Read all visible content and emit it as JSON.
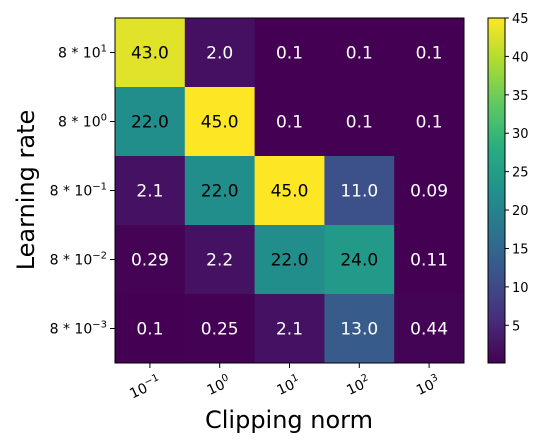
{
  "chart_data": {
    "type": "heatmap",
    "xlabel": "Clipping norm",
    "ylabel": "Learning rate",
    "x_ticks": [
      {
        "base": "10",
        "exp": "−1"
      },
      {
        "base": "10",
        "exp": "0"
      },
      {
        "base": "10",
        "exp": "1"
      },
      {
        "base": "10",
        "exp": "2"
      },
      {
        "base": "10",
        "exp": "3"
      }
    ],
    "y_ticks": [
      {
        "base": "8 * 10",
        "exp": "1"
      },
      {
        "base": "8 * 10",
        "exp": "0"
      },
      {
        "base": "8 * 10",
        "exp": "−1"
      },
      {
        "base": "8 * 10",
        "exp": "−2"
      },
      {
        "base": "8 * 10",
        "exp": "−3"
      }
    ],
    "values": [
      [
        43.0,
        2.0,
        0.1,
        0.1,
        0.1
      ],
      [
        22.0,
        45.0,
        0.1,
        0.1,
        0.1
      ],
      [
        2.1,
        22.0,
        45.0,
        11.0,
        0.09
      ],
      [
        0.29,
        2.2,
        22.0,
        24.0,
        0.11
      ],
      [
        0.1,
        0.25,
        2.1,
        13.0,
        0.44
      ]
    ],
    "labels": [
      [
        "43.0",
        "2.0",
        "0.1",
        "0.1",
        "0.1"
      ],
      [
        "22.0",
        "45.0",
        "0.1",
        "0.1",
        "0.1"
      ],
      [
        "2.1",
        "22.0",
        "45.0",
        "11.0",
        "0.09"
      ],
      [
        "0.29",
        "2.2",
        "22.0",
        "24.0",
        "0.11"
      ],
      [
        "0.1",
        "0.25",
        "2.1",
        "13.0",
        "0.44"
      ]
    ],
    "colormap": "viridis",
    "vmin": 0.09,
    "vmax": 45,
    "colorbar_ticks": [
      5,
      10,
      15,
      20,
      25,
      30,
      35,
      40,
      45
    ],
    "colorbar_tick_labels": [
      "5",
      "10",
      "15",
      "20",
      "25",
      "30",
      "35",
      "40",
      "45"
    ]
  }
}
